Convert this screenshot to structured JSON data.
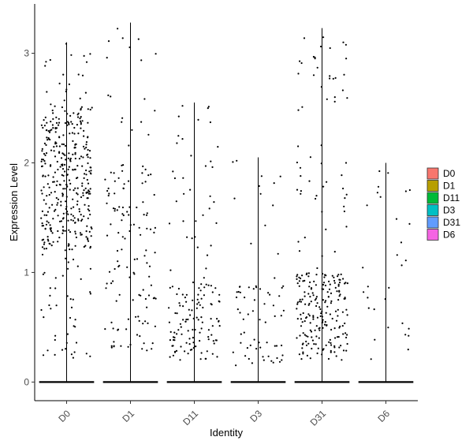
{
  "chart_data": {
    "type": "scatter",
    "subtype": "violin-jitter",
    "title": "",
    "xlabel": "Identity",
    "ylabel": "Expression Level",
    "categories": [
      "D0",
      "D1",
      "D11",
      "D3",
      "D31",
      "D6"
    ],
    "ylim": [
      -0.17,
      3.45
    ],
    "yticks": [
      0,
      1,
      2,
      3
    ],
    "grid": false,
    "legend": {
      "placement": "right",
      "entries": [
        {
          "label": "D0",
          "color": "#F8766D"
        },
        {
          "label": "D1",
          "color": "#B79F00"
        },
        {
          "label": "D11",
          "color": "#00BA38"
        },
        {
          "label": "D3",
          "color": "#00BFC4"
        },
        {
          "label": "D31",
          "color": "#619CFF"
        },
        {
          "label": "D6",
          "color": "#F564E3"
        }
      ]
    },
    "point_color": "#000000",
    "violin_max": [
      3.1,
      3.28,
      2.55,
      2.05,
      3.23,
      2.0
    ],
    "points": [
      {
        "group": "D0",
        "count_nonzero": 420,
        "y_range": [
          0.2,
          3.1
        ],
        "dense_band": [
          1.2,
          2.5
        ],
        "jitter": 0.4
      },
      {
        "group": "D1",
        "count_nonzero": 140,
        "y_range": [
          0.25,
          3.28
        ],
        "dense_band": [
          0.3,
          2.0
        ],
        "jitter": 0.4
      },
      {
        "group": "D11",
        "count_nonzero": 150,
        "y_range": [
          0.2,
          2.55
        ],
        "dense_band": [
          0.2,
          0.9
        ],
        "jitter": 0.4
      },
      {
        "group": "D3",
        "count_nonzero": 70,
        "y_range": [
          0.15,
          2.05
        ],
        "dense_band": [
          0.15,
          0.9
        ],
        "jitter": 0.4
      },
      {
        "group": "D31",
        "count_nonzero": 260,
        "y_range": [
          0.2,
          3.23
        ],
        "dense_band": [
          0.2,
          1.0
        ],
        "jitter": 0.4
      },
      {
        "group": "D6",
        "count_nonzero": 30,
        "y_range": [
          0.2,
          2.0
        ],
        "dense_band": [
          0.2,
          2.0
        ],
        "jitter": 0.4
      }
    ]
  }
}
